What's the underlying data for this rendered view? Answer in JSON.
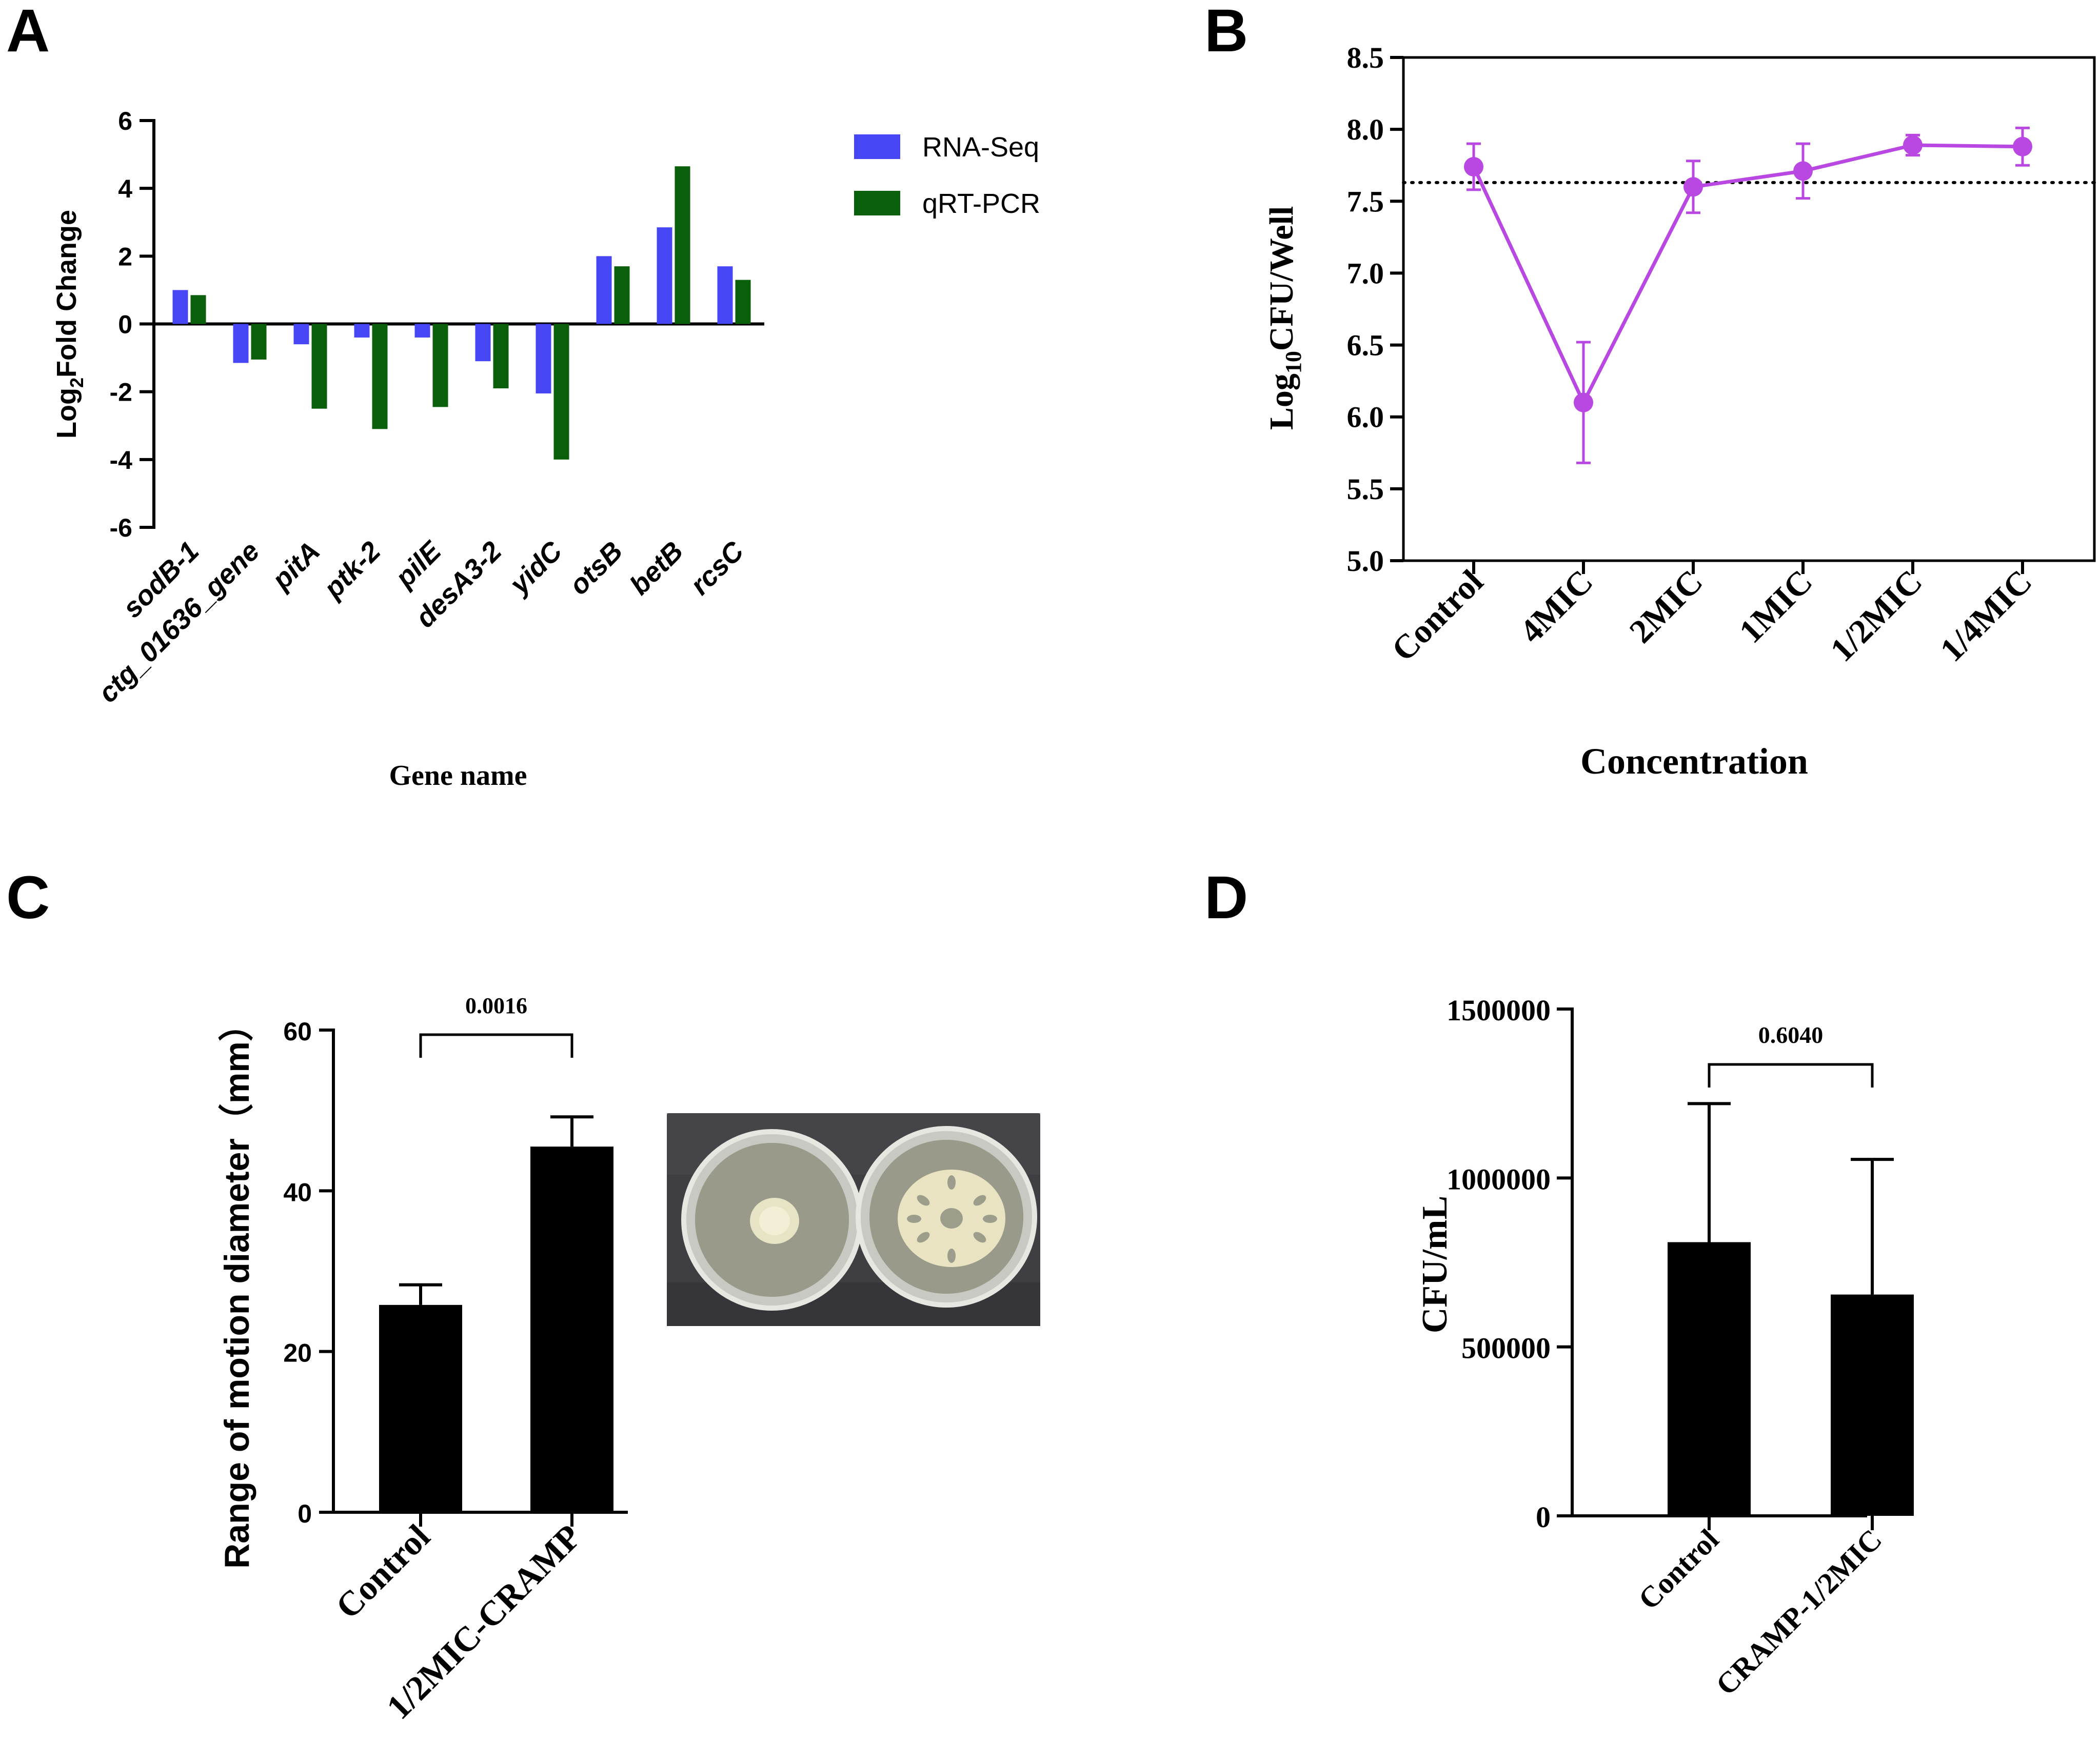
{
  "panels": {
    "A": "A",
    "B": "B",
    "C": "C",
    "D": "D"
  },
  "colors": {
    "rnaseq": "#4646f5",
    "qrtpcr": "#0a5f0a",
    "lineB": "#b947e2",
    "black": "#000000",
    "plate_bg": "#3f3f43"
  },
  "chart_data": [
    {
      "id": "A",
      "type": "bar",
      "title": "",
      "xlabel": "Gene name",
      "ylabel_main": "Log",
      "ylabel_sub": "2",
      "ylabel_rest": "Fold Change",
      "ylim": [
        -6,
        6
      ],
      "yticks": [
        -6,
        -4,
        -2,
        0,
        2,
        4,
        6
      ],
      "ytick_labels": [
        "-6",
        "-4",
        "-2",
        "0",
        "2",
        "4",
        "6"
      ],
      "categories": [
        "sodB-1",
        "ctg_01636_gene",
        "pitA",
        "ptk-2",
        "pilE",
        "desA3-2",
        "yidC",
        "otsB",
        "betB",
        "rcsC"
      ],
      "series": [
        {
          "name": "RNA-Seq",
          "values": [
            1.0,
            -1.15,
            -0.6,
            -0.4,
            -0.4,
            -1.1,
            -2.05,
            2.0,
            2.85,
            1.7
          ]
        },
        {
          "name": "qRT-PCR",
          "values": [
            0.85,
            -1.05,
            -2.5,
            -3.1,
            -2.45,
            -1.9,
            -4.0,
            1.7,
            4.65,
            1.3
          ]
        }
      ],
      "legend_position": "top-right"
    },
    {
      "id": "B",
      "type": "line",
      "title": "",
      "xlabel": "Concentration",
      "ylabel_main": "Log",
      "ylabel_sub": "10",
      "ylabel_rest": "CFU/Well",
      "ylim": [
        5.0,
        8.5
      ],
      "yticks": [
        5.0,
        5.5,
        6.0,
        6.5,
        7.0,
        7.5,
        8.0,
        8.5
      ],
      "ytick_labels": [
        "5.0",
        "5.5",
        "6.0",
        "6.5",
        "7.0",
        "7.5",
        "8.0",
        "8.5"
      ],
      "categories": [
        "Control",
        "4MIC",
        "2MIC",
        "1MIC",
        "1/2MIC",
        "1/4MIC"
      ],
      "values": [
        7.74,
        6.1,
        7.6,
        7.71,
        7.89,
        7.88
      ],
      "errors": [
        0.16,
        0.42,
        0.18,
        0.19,
        0.07,
        0.13
      ],
      "reference_line": 7.63
    },
    {
      "id": "C",
      "type": "bar",
      "title": "",
      "xlabel": "",
      "ylabel": "Range of motion diameter（mm）",
      "ylim": [
        0,
        60
      ],
      "yticks": [
        0,
        20,
        40,
        60
      ],
      "ytick_labels": [
        "0",
        "20",
        "40",
        "60"
      ],
      "categories": [
        "Control",
        "1/2MIC-CRAMP"
      ],
      "values": [
        25.8,
        45.5
      ],
      "errors": [
        2.5,
        3.7
      ],
      "pvalue": "0.0016"
    },
    {
      "id": "D",
      "type": "bar",
      "title": "",
      "xlabel": "",
      "ylabel": "CFU/mL",
      "ylim": [
        0,
        1500000
      ],
      "yticks": [
        0,
        500000,
        1000000,
        1500000
      ],
      "ytick_labels": [
        "0",
        "500000",
        "1000000",
        "1500000"
      ],
      "categories": [
        "Control",
        "CRAMP-1/2MIC"
      ],
      "values": [
        810000,
        655000
      ],
      "errors": [
        410000,
        400000
      ],
      "pvalue": "0.6040"
    }
  ],
  "photo": {
    "description_icon": "petri-dish-photo"
  }
}
